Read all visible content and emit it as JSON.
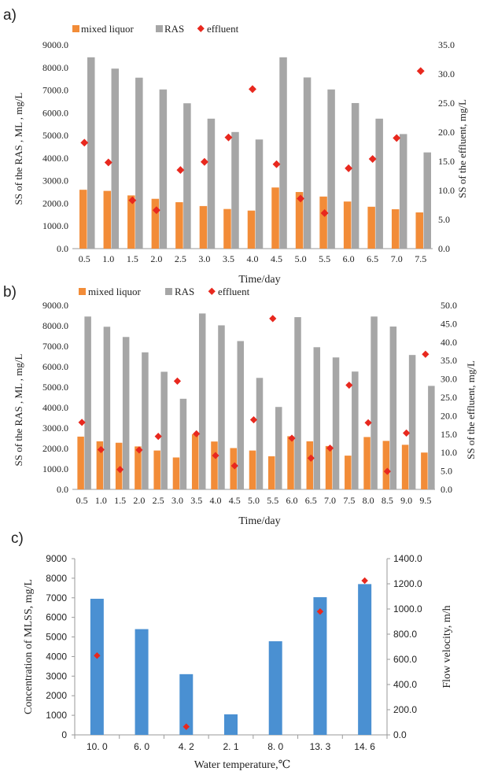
{
  "panels": [
    {
      "letter": "a)"
    },
    {
      "letter": "b)"
    },
    {
      "letter": "c)"
    }
  ],
  "colors": {
    "mixed_liquor": "#f28c38",
    "ras": "#a6a6a6",
    "effluent": "#e8281e",
    "mlss": "#4a90d2",
    "flow": "#e8281e",
    "axis": "#9a9a9a",
    "text": "#222222"
  },
  "chart_data": [
    {
      "type": "bar",
      "panel": "a)",
      "legend": [
        "mixed liquor",
        "RAS",
        "effluent"
      ],
      "xlabel": "Time/day",
      "ylabel": "SS of the RAS , ML , mg/L",
      "y2label": "SS of the effluent, mg/L",
      "ylim": [
        0,
        9000
      ],
      "y2lim": [
        0,
        35
      ],
      "yticks": [
        "0.0",
        "1000.0",
        "2000.0",
        "3000.0",
        "4000.0",
        "5000.0",
        "6000.0",
        "7000.0",
        "8000.0",
        "9000.0"
      ],
      "y2ticks": [
        "0.0",
        "5.0",
        "10.0",
        "15.0",
        "20.0",
        "25.0",
        "30.0",
        "35.0"
      ],
      "categories": [
        "0.5",
        "1.0",
        "1.5",
        "2.0",
        "2.5",
        "3.0",
        "3.5",
        "4.0",
        "4.5",
        "5.0",
        "5.5",
        "6.0",
        "6.5",
        "7.0",
        "7.5"
      ],
      "series": [
        {
          "name": "mixed liquor",
          "kind": "bar",
          "axis": "left",
          "values": [
            2600,
            2550,
            2350,
            2200,
            2050,
            1880,
            1750,
            1680,
            2700,
            2500,
            2300,
            2080,
            1850,
            1740,
            1600
          ]
        },
        {
          "name": "RAS",
          "kind": "bar",
          "axis": "left",
          "values": [
            8450,
            7950,
            7550,
            7030,
            6420,
            5740,
            5150,
            4820,
            8450,
            7560,
            7030,
            6430,
            5740,
            5060,
            4250
          ]
        },
        {
          "name": "effluent",
          "kind": "marker",
          "axis": "right",
          "values": [
            18.2,
            14.8,
            8.3,
            6.6,
            13.5,
            14.9,
            19.1,
            27.4,
            14.5,
            8.6,
            6.1,
            13.8,
            15.4,
            19.0,
            30.5
          ]
        }
      ]
    },
    {
      "type": "bar",
      "panel": "b)",
      "legend": [
        "mixed liquor",
        "RAS",
        "effluent"
      ],
      "xlabel": "Time/day",
      "ylabel": "SS of the RAS , ML , mg/L",
      "y2label": "SS of the effluent, mg/L",
      "ylim": [
        0,
        9000
      ],
      "y2lim": [
        0,
        50
      ],
      "yticks": [
        "0.0",
        "1000.0",
        "2000.0",
        "3000.0",
        "4000.0",
        "5000.0",
        "6000.0",
        "7000.0",
        "8000.0",
        "9000.0"
      ],
      "y2ticks": [
        "0.0",
        "5.0",
        "10.0",
        "15.0",
        "20.0",
        "25.0",
        "30.0",
        "35.0",
        "40.0",
        "45.0",
        "50.0"
      ],
      "categories": [
        "0.5",
        "1.0",
        "1.5",
        "2.0",
        "2.5",
        "3.0",
        "3.5",
        "4.0",
        "4.5",
        "5.0",
        "5.5",
        "6.0",
        "6.5",
        "7.0",
        "7.5",
        "8.0",
        "8.5",
        "9.0",
        "9.5"
      ],
      "series": [
        {
          "name": "mixed liquor",
          "kind": "bar",
          "axis": "left",
          "values": [
            2580,
            2350,
            2280,
            2100,
            1900,
            1560,
            2700,
            2340,
            2020,
            1900,
            1620,
            2600,
            2350,
            2120,
            1650,
            2560,
            2370,
            2180,
            1800
          ]
        },
        {
          "name": "RAS",
          "kind": "bar",
          "axis": "left",
          "values": [
            8450,
            7950,
            7450,
            6700,
            5750,
            4430,
            8600,
            8020,
            7250,
            5450,
            4030,
            8420,
            6950,
            6450,
            5760,
            8450,
            7960,
            6570,
            5060
          ]
        },
        {
          "name": "effluent",
          "kind": "marker",
          "axis": "right",
          "values": [
            18.2,
            10.8,
            5.4,
            10.7,
            14.4,
            29.4,
            15.1,
            9.2,
            6.4,
            18.9,
            46.4,
            13.9,
            8.5,
            11.2,
            28.3,
            18.1,
            4.9,
            15.3,
            36.7
          ]
        }
      ]
    },
    {
      "type": "bar",
      "panel": "c)",
      "xlabel": "Water temperature,℃",
      "ylabel": "Concentration of MLSS, mg/L",
      "y2label": "Flow velocity, m/h",
      "ylim": [
        0,
        9000
      ],
      "y2lim": [
        0,
        1400
      ],
      "yticks": [
        "0",
        "1000",
        "2000",
        "3000",
        "4000",
        "5000",
        "6000",
        "7000",
        "8000",
        "9000"
      ],
      "y2ticks": [
        "0.0",
        "200.0",
        "400.0",
        "600.0",
        "800.0",
        "1000.0",
        "1200.0",
        "1400.0"
      ],
      "categories": [
        "10. 0",
        "6. 0",
        "4. 2",
        "2. 1",
        "8. 0",
        "13. 3",
        "14. 6"
      ],
      "series": [
        {
          "name": "",
          "kind": "bar",
          "axis": "left",
          "values": [
            6950,
            5400,
            3100,
            1050,
            4780,
            7030,
            7700
          ]
        },
        {
          "name": "",
          "kind": "marker",
          "axis": "right",
          "values": [
            630,
            null,
            65,
            null,
            null,
            980,
            1225
          ]
        }
      ]
    }
  ]
}
